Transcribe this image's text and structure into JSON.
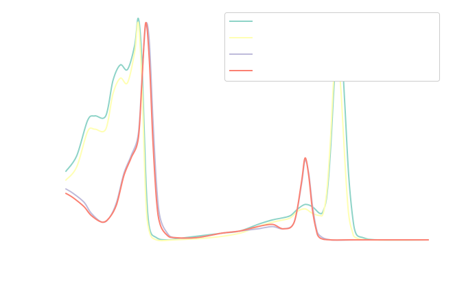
{
  "chart_data": {
    "type": "line",
    "title": "",
    "xlabel": "",
    "ylabel": "",
    "grid": false,
    "legend": "top-right",
    "xlim": [
      0,
      100
    ],
    "ylim": [
      0,
      100
    ],
    "series": [
      {
        "color": "#8dd3c7",
        "points": [
          [
            0,
            31
          ],
          [
            3,
            38
          ],
          [
            6,
            54
          ],
          [
            8,
            56
          ],
          [
            11,
            56
          ],
          [
            13,
            72
          ],
          [
            15,
            79
          ],
          [
            17,
            77
          ],
          [
            19,
            88
          ],
          [
            20,
            100
          ],
          [
            21,
            80
          ],
          [
            22,
            30
          ],
          [
            23,
            6
          ],
          [
            25,
            1
          ],
          [
            28,
            0
          ],
          [
            33,
            1
          ],
          [
            38,
            2
          ],
          [
            43,
            3
          ],
          [
            48,
            4
          ],
          [
            53,
            7
          ],
          [
            57,
            9
          ],
          [
            60,
            10
          ],
          [
            62,
            11
          ],
          [
            64,
            14
          ],
          [
            66,
            16
          ],
          [
            68,
            15
          ],
          [
            70,
            12
          ],
          [
            71,
            13
          ],
          [
            72,
            20
          ],
          [
            73,
            40
          ],
          [
            74,
            70
          ],
          [
            75,
            92
          ],
          [
            76,
            88
          ],
          [
            77,
            60
          ],
          [
            78,
            30
          ],
          [
            79,
            12
          ],
          [
            80,
            3
          ],
          [
            82,
            1
          ],
          [
            86,
            0
          ],
          [
            100,
            0
          ]
        ]
      },
      {
        "color": "#ffffb3",
        "points": [
          [
            0,
            27
          ],
          [
            3,
            33
          ],
          [
            6,
            49
          ],
          [
            8,
            50
          ],
          [
            11,
            50
          ],
          [
            13,
            66
          ],
          [
            15,
            73
          ],
          [
            17,
            71
          ],
          [
            19,
            85
          ],
          [
            20,
            98
          ],
          [
            21,
            70
          ],
          [
            22,
            20
          ],
          [
            23,
            4
          ],
          [
            25,
            0
          ],
          [
            30,
            0
          ],
          [
            40,
            1
          ],
          [
            48,
            3
          ],
          [
            53,
            6
          ],
          [
            57,
            8
          ],
          [
            60,
            9
          ],
          [
            62,
            10
          ],
          [
            64,
            13
          ],
          [
            66,
            14
          ],
          [
            68,
            12
          ],
          [
            70,
            11
          ],
          [
            71,
            12
          ],
          [
            72,
            22
          ],
          [
            73,
            45
          ],
          [
            74,
            75
          ],
          [
            75,
            83
          ],
          [
            76,
            65
          ],
          [
            77,
            35
          ],
          [
            78,
            12
          ],
          [
            79,
            4
          ],
          [
            80,
            1
          ],
          [
            84,
            0
          ],
          [
            100,
            0
          ]
        ]
      },
      {
        "color": "#bebada",
        "points": [
          [
            0,
            23
          ],
          [
            2,
            21
          ],
          [
            5,
            17
          ],
          [
            7,
            12
          ],
          [
            10,
            8
          ],
          [
            12,
            10
          ],
          [
            14,
            17
          ],
          [
            16,
            30
          ],
          [
            18,
            38
          ],
          [
            20,
            48
          ],
          [
            21,
            73
          ],
          [
            22,
            97
          ],
          [
            23,
            90
          ],
          [
            24,
            55
          ],
          [
            25,
            25
          ],
          [
            26,
            10
          ],
          [
            28,
            3
          ],
          [
            30,
            1
          ],
          [
            36,
            1
          ],
          [
            43,
            3
          ],
          [
            48,
            4
          ],
          [
            53,
            5
          ],
          [
            57,
            6
          ],
          [
            60,
            5
          ],
          [
            63,
            8
          ],
          [
            65,
            25
          ],
          [
            66,
            36
          ],
          [
            67,
            30
          ],
          [
            68,
            16
          ],
          [
            69,
            6
          ],
          [
            70,
            2
          ],
          [
            73,
            0
          ],
          [
            80,
            0
          ],
          [
            100,
            0
          ]
        ]
      },
      {
        "color": "#fb8072",
        "points": [
          [
            0,
            21
          ],
          [
            2,
            19
          ],
          [
            5,
            15
          ],
          [
            7,
            11
          ],
          [
            10,
            8
          ],
          [
            12,
            10
          ],
          [
            14,
            16
          ],
          [
            16,
            29
          ],
          [
            18,
            37
          ],
          [
            20,
            46
          ],
          [
            21,
            72
          ],
          [
            22,
            98
          ],
          [
            23,
            82
          ],
          [
            24,
            45
          ],
          [
            25,
            18
          ],
          [
            26,
            7
          ],
          [
            28,
            2
          ],
          [
            30,
            1
          ],
          [
            36,
            1
          ],
          [
            43,
            3
          ],
          [
            48,
            4
          ],
          [
            53,
            6
          ],
          [
            57,
            7
          ],
          [
            60,
            5
          ],
          [
            63,
            8
          ],
          [
            65,
            26
          ],
          [
            66,
            37
          ],
          [
            67,
            29
          ],
          [
            68,
            14
          ],
          [
            69,
            5
          ],
          [
            70,
            1
          ],
          [
            73,
            0
          ],
          [
            80,
            0
          ],
          [
            100,
            0
          ]
        ]
      }
    ]
  }
}
